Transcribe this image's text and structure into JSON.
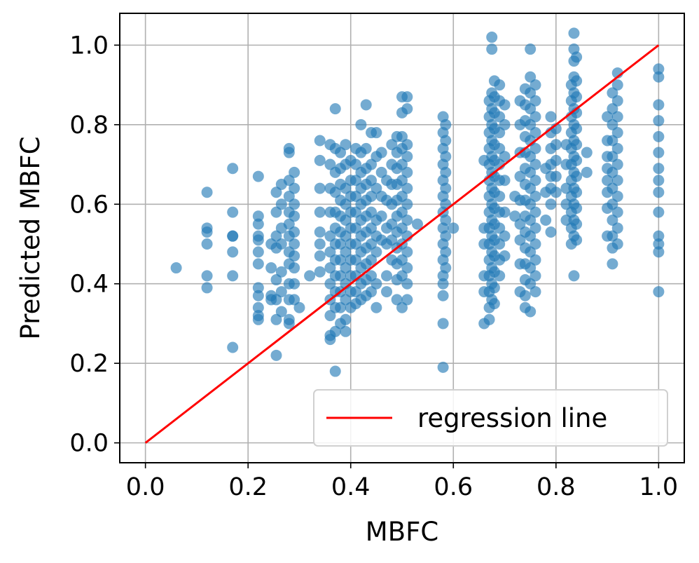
{
  "chart_data": {
    "type": "scatter",
    "title": "",
    "xlabel": "MBFC",
    "ylabel": "Predicted MBFC",
    "xlim": [
      -0.05,
      1.05
    ],
    "ylim": [
      -0.05,
      1.08
    ],
    "xticks": [
      0.0,
      0.2,
      0.4,
      0.6,
      0.8,
      1.0
    ],
    "yticks": [
      0.0,
      0.2,
      0.4,
      0.6,
      0.8,
      1.0
    ],
    "xtick_labels": [
      "0.0",
      "0.2",
      "0.4",
      "0.6",
      "0.8",
      "1.0"
    ],
    "ytick_labels": [
      "0.0",
      "0.2",
      "0.4",
      "0.6",
      "0.8",
      "1.0"
    ],
    "grid": true,
    "legend": {
      "placement": "lower-right",
      "entries": [
        "regression line"
      ]
    },
    "regression_line": {
      "name": "regression line",
      "color": "#ff0000",
      "x": [
        0.0,
        1.0
      ],
      "y": [
        0.0,
        1.0
      ]
    },
    "scatter_color": "#1f77b4",
    "columns": [
      {
        "x": 0.06,
        "y": [
          0.44
        ]
      },
      {
        "x": 0.12,
        "y": [
          0.63,
          0.54,
          0.53,
          0.5,
          0.42,
          0.39
        ]
      },
      {
        "x": 0.17,
        "y": [
          0.69,
          0.58,
          0.52,
          0.52,
          0.48,
          0.42,
          0.24
        ]
      },
      {
        "x": 0.22,
        "y": [
          0.67,
          0.57,
          0.55,
          0.52,
          0.51,
          0.48,
          0.45,
          0.39,
          0.37,
          0.34,
          0.32,
          0.31
        ]
      },
      {
        "x": 0.245,
        "y": [
          0.5,
          0.44,
          0.37,
          0.36
        ]
      },
      {
        "x": 0.255,
        "y": [
          0.63,
          0.58,
          0.52,
          0.49,
          0.41,
          0.36,
          0.31,
          0.22
        ]
      },
      {
        "x": 0.265,
        "y": [
          0.65,
          0.6,
          0.54,
          0.5,
          0.43,
          0.38,
          0.33
        ]
      },
      {
        "x": 0.28,
        "y": [
          0.74,
          0.73,
          0.66,
          0.62,
          0.58,
          0.55,
          0.52,
          0.48,
          0.45,
          0.4,
          0.36,
          0.31,
          0.3
        ]
      },
      {
        "x": 0.29,
        "y": [
          0.68,
          0.64,
          0.6,
          0.57,
          0.53,
          0.5,
          0.47,
          0.44,
          0.4,
          0.36
        ]
      },
      {
        "x": 0.3,
        "y": [
          0.34
        ]
      },
      {
        "x": 0.32,
        "y": [
          0.42
        ]
      },
      {
        "x": 0.34,
        "y": [
          0.76,
          0.71,
          0.64,
          0.58,
          0.53,
          0.5,
          0.47,
          0.43
        ]
      },
      {
        "x": 0.36,
        "y": [
          0.75,
          0.7,
          0.64,
          0.58,
          0.52,
          0.48,
          0.44,
          0.4,
          0.36,
          0.32,
          0.27,
          0.26
        ]
      },
      {
        "x": 0.37,
        "y": [
          0.84,
          0.74,
          0.68,
          0.63,
          0.58,
          0.54,
          0.5,
          0.46,
          0.42,
          0.38,
          0.34,
          0.28,
          0.18
        ]
      },
      {
        "x": 0.38,
        "y": [
          0.73,
          0.69,
          0.65,
          0.61,
          0.57,
          0.53,
          0.5,
          0.46,
          0.42,
          0.38,
          0.34,
          0.3
        ]
      },
      {
        "x": 0.39,
        "y": [
          0.75,
          0.7,
          0.64,
          0.6,
          0.56,
          0.52,
          0.48,
          0.44,
          0.4,
          0.36,
          0.31,
          0.28
        ]
      },
      {
        "x": 0.4,
        "y": [
          0.71,
          0.66,
          0.62,
          0.58,
          0.54,
          0.5,
          0.46,
          0.42,
          0.38,
          0.34
        ]
      },
      {
        "x": 0.41,
        "y": [
          0.74,
          0.7,
          0.66,
          0.62,
          0.58,
          0.54,
          0.5,
          0.46,
          0.42,
          0.38,
          0.35
        ]
      },
      {
        "x": 0.42,
        "y": [
          0.8,
          0.73,
          0.68,
          0.64,
          0.6,
          0.56,
          0.52,
          0.48,
          0.44,
          0.4,
          0.36
        ]
      },
      {
        "x": 0.43,
        "y": [
          0.85,
          0.74,
          0.69,
          0.65,
          0.61,
          0.57,
          0.53,
          0.49,
          0.45,
          0.41,
          0.37
        ]
      },
      {
        "x": 0.44,
        "y": [
          0.78,
          0.7,
          0.66,
          0.62,
          0.58,
          0.54,
          0.5,
          0.46,
          0.42,
          0.38
        ]
      },
      {
        "x": 0.45,
        "y": [
          0.78,
          0.72,
          0.64,
          0.56,
          0.52,
          0.48,
          0.4,
          0.34
        ]
      },
      {
        "x": 0.46,
        "y": [
          0.73,
          0.68,
          0.62,
          0.57,
          0.51
        ]
      },
      {
        "x": 0.47,
        "y": [
          0.66,
          0.61,
          0.54,
          0.5,
          0.42,
          0.38
        ]
      },
      {
        "x": 0.48,
        "y": [
          0.75,
          0.7,
          0.65,
          0.6,
          0.55,
          0.51,
          0.46
        ]
      },
      {
        "x": 0.49,
        "y": [
          0.77,
          0.73,
          0.69,
          0.65,
          0.61,
          0.57,
          0.53,
          0.49,
          0.45,
          0.41,
          0.36
        ]
      },
      {
        "x": 0.5,
        "y": [
          0.87,
          0.83,
          0.77,
          0.74,
          0.7,
          0.66,
          0.62,
          0.58,
          0.54,
          0.5,
          0.46,
          0.42,
          0.34
        ]
      },
      {
        "x": 0.51,
        "y": [
          0.87,
          0.84,
          0.75,
          0.72,
          0.68,
          0.64,
          0.6,
          0.56,
          0.52,
          0.48,
          0.44,
          0.4,
          0.36
        ]
      },
      {
        "x": 0.53,
        "y": [
          0.55
        ]
      },
      {
        "x": 0.58,
        "y": [
          0.82,
          0.78,
          0.74,
          0.7,
          0.66,
          0.62,
          0.58,
          0.54,
          0.5,
          0.46,
          0.42,
          0.4,
          0.37,
          0.3,
          0.19
        ]
      },
      {
        "x": 0.585,
        "y": [
          0.8,
          0.76,
          0.72,
          0.68,
          0.64,
          0.6,
          0.56,
          0.52,
          0.48,
          0.44
        ]
      },
      {
        "x": 0.6,
        "y": [
          0.54
        ]
      },
      {
        "x": 0.66,
        "y": [
          0.71,
          0.54,
          0.5,
          0.42,
          0.38,
          0.3
        ]
      },
      {
        "x": 0.67,
        "y": [
          0.86,
          0.82,
          0.78,
          0.74,
          0.7,
          0.66,
          0.62,
          0.58,
          0.54,
          0.5,
          0.46,
          0.42,
          0.38,
          0.34,
          0.31
        ]
      },
      {
        "x": 0.675,
        "y": [
          1.02,
          0.99,
          0.88,
          0.84,
          0.8,
          0.76,
          0.72,
          0.68,
          0.64,
          0.6,
          0.56,
          0.52,
          0.48,
          0.44,
          0.4,
          0.36
        ]
      },
      {
        "x": 0.68,
        "y": [
          0.91,
          0.87,
          0.83,
          0.79,
          0.75,
          0.71,
          0.67,
          0.63,
          0.59,
          0.55,
          0.51,
          0.47,
          0.43,
          0.39,
          0.35
        ]
      },
      {
        "x": 0.69,
        "y": [
          0.9,
          0.86,
          0.82,
          0.78,
          0.74,
          0.7,
          0.66,
          0.62,
          0.58,
          0.54,
          0.5,
          0.46,
          0.42
        ]
      },
      {
        "x": 0.7,
        "y": [
          0.85,
          0.8,
          0.72,
          0.66,
          0.58,
          0.52,
          0.47
        ]
      },
      {
        "x": 0.72,
        "y": [
          0.62,
          0.57
        ]
      },
      {
        "x": 0.73,
        "y": [
          0.86,
          0.8,
          0.73,
          0.67,
          0.61,
          0.55,
          0.51,
          0.45,
          0.38
        ]
      },
      {
        "x": 0.74,
        "y": [
          0.89,
          0.85,
          0.81,
          0.77,
          0.73,
          0.69,
          0.65,
          0.61,
          0.57,
          0.53,
          0.49,
          0.45,
          0.41,
          0.37,
          0.34
        ]
      },
      {
        "x": 0.75,
        "y": [
          0.99,
          0.92,
          0.88,
          0.84,
          0.8,
          0.76,
          0.72,
          0.68,
          0.64,
          0.6,
          0.56,
          0.52,
          0.48,
          0.44,
          0.4,
          0.33
        ]
      },
      {
        "x": 0.76,
        "y": [
          0.9,
          0.86,
          0.82,
          0.78,
          0.74,
          0.7,
          0.66,
          0.62,
          0.58,
          0.54,
          0.5,
          0.46,
          0.42,
          0.38
        ]
      },
      {
        "x": 0.78,
        "y": [
          0.69,
          0.63,
          0.56
        ]
      },
      {
        "x": 0.79,
        "y": [
          0.82,
          0.78,
          0.74,
          0.7,
          0.67,
          0.64,
          0.6,
          0.53
        ]
      },
      {
        "x": 0.8,
        "y": [
          0.79,
          0.75,
          0.71,
          0.67,
          0.63
        ]
      },
      {
        "x": 0.82,
        "y": [
          0.75,
          0.7,
          0.64,
          0.6,
          0.56
        ]
      },
      {
        "x": 0.83,
        "y": [
          0.9,
          0.86,
          0.82,
          0.78,
          0.74,
          0.7,
          0.66,
          0.62,
          0.58,
          0.54,
          0.5
        ]
      },
      {
        "x": 0.835,
        "y": [
          1.03,
          0.99,
          0.96,
          0.92,
          0.88,
          0.84,
          0.8,
          0.76,
          0.72,
          0.68,
          0.64,
          0.6,
          0.56,
          0.52,
          0.42
        ]
      },
      {
        "x": 0.84,
        "y": [
          0.97,
          0.91,
          0.87,
          0.83,
          0.79,
          0.75,
          0.71,
          0.67,
          0.63,
          0.59,
          0.55,
          0.51
        ]
      },
      {
        "x": 0.86,
        "y": [
          0.73,
          0.68
        ]
      },
      {
        "x": 0.9,
        "y": [
          0.82,
          0.76,
          0.72,
          0.69,
          0.66,
          0.63,
          0.59,
          0.52
        ]
      },
      {
        "x": 0.91,
        "y": [
          0.88,
          0.84,
          0.8,
          0.76,
          0.72,
          0.68,
          0.64,
          0.6,
          0.56,
          0.52,
          0.49,
          0.45
        ]
      },
      {
        "x": 0.92,
        "y": [
          0.93,
          0.9,
          0.86,
          0.82,
          0.78,
          0.74,
          0.7,
          0.66,
          0.62,
          0.58,
          0.54,
          0.5
        ]
      },
      {
        "x": 1.0,
        "y": [
          0.94,
          0.92,
          0.85,
          0.81,
          0.77,
          0.73,
          0.69,
          0.66,
          0.63,
          0.58,
          0.52,
          0.5,
          0.48,
          0.38
        ]
      }
    ]
  }
}
